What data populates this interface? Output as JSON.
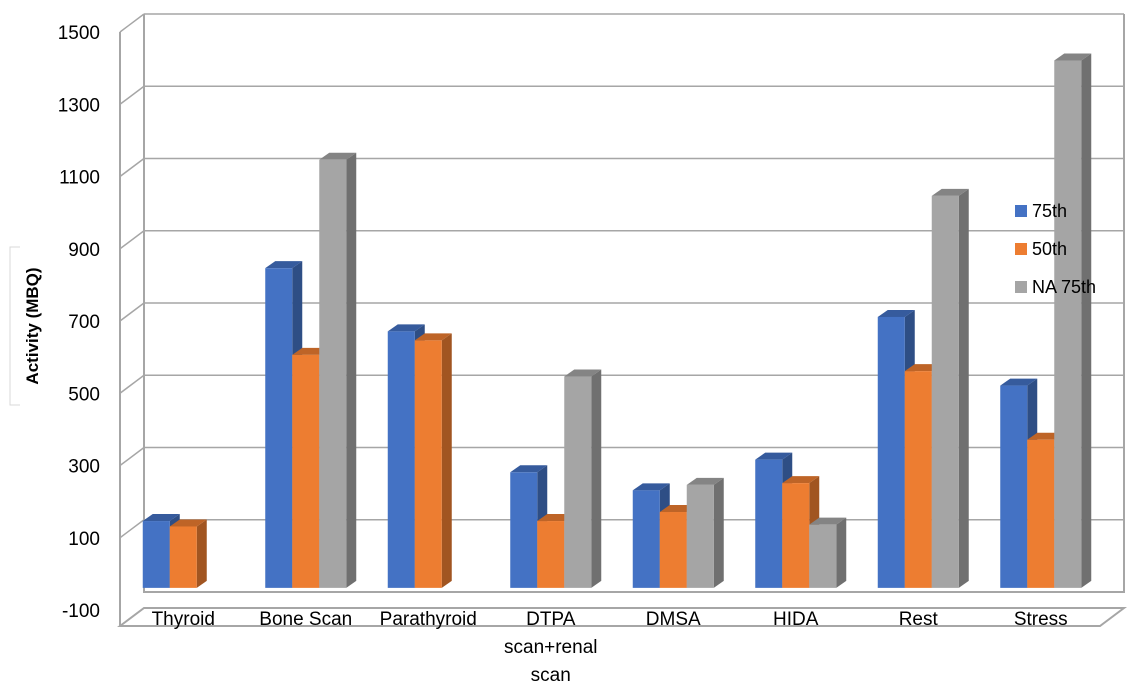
{
  "chart_data": {
    "type": "bar",
    "style": "3d-clustered-column",
    "ylabel": "Activity (MBQ)",
    "ylim": [
      -100,
      1500
    ],
    "yticks": [
      -100,
      100,
      300,
      500,
      700,
      900,
      1100,
      1300,
      1500
    ],
    "categories": [
      [
        "Thyroid"
      ],
      [
        "Bone Scan"
      ],
      [
        "Parathyroid"
      ],
      [
        "DTPA",
        "scan+renal",
        "scan"
      ],
      [
        "DMSA"
      ],
      [
        "HIDA"
      ],
      [
        "Rest"
      ],
      [
        "Stress"
      ]
    ],
    "series": [
      {
        "name": "75th",
        "color": "#4472c4",
        "values": [
          185,
          885,
          710,
          320,
          270,
          355,
          750,
          560
        ]
      },
      {
        "name": "50th",
        "color": "#ed7d31",
        "values": [
          170,
          645,
          685,
          185,
          210,
          290,
          600,
          410
        ]
      },
      {
        "name": "NA 75th",
        "color": "#a5a5a5",
        "values": [
          null,
          1185,
          null,
          585,
          285,
          175,
          1085,
          1460
        ]
      }
    ],
    "legend_position": "right",
    "grid": true
  }
}
